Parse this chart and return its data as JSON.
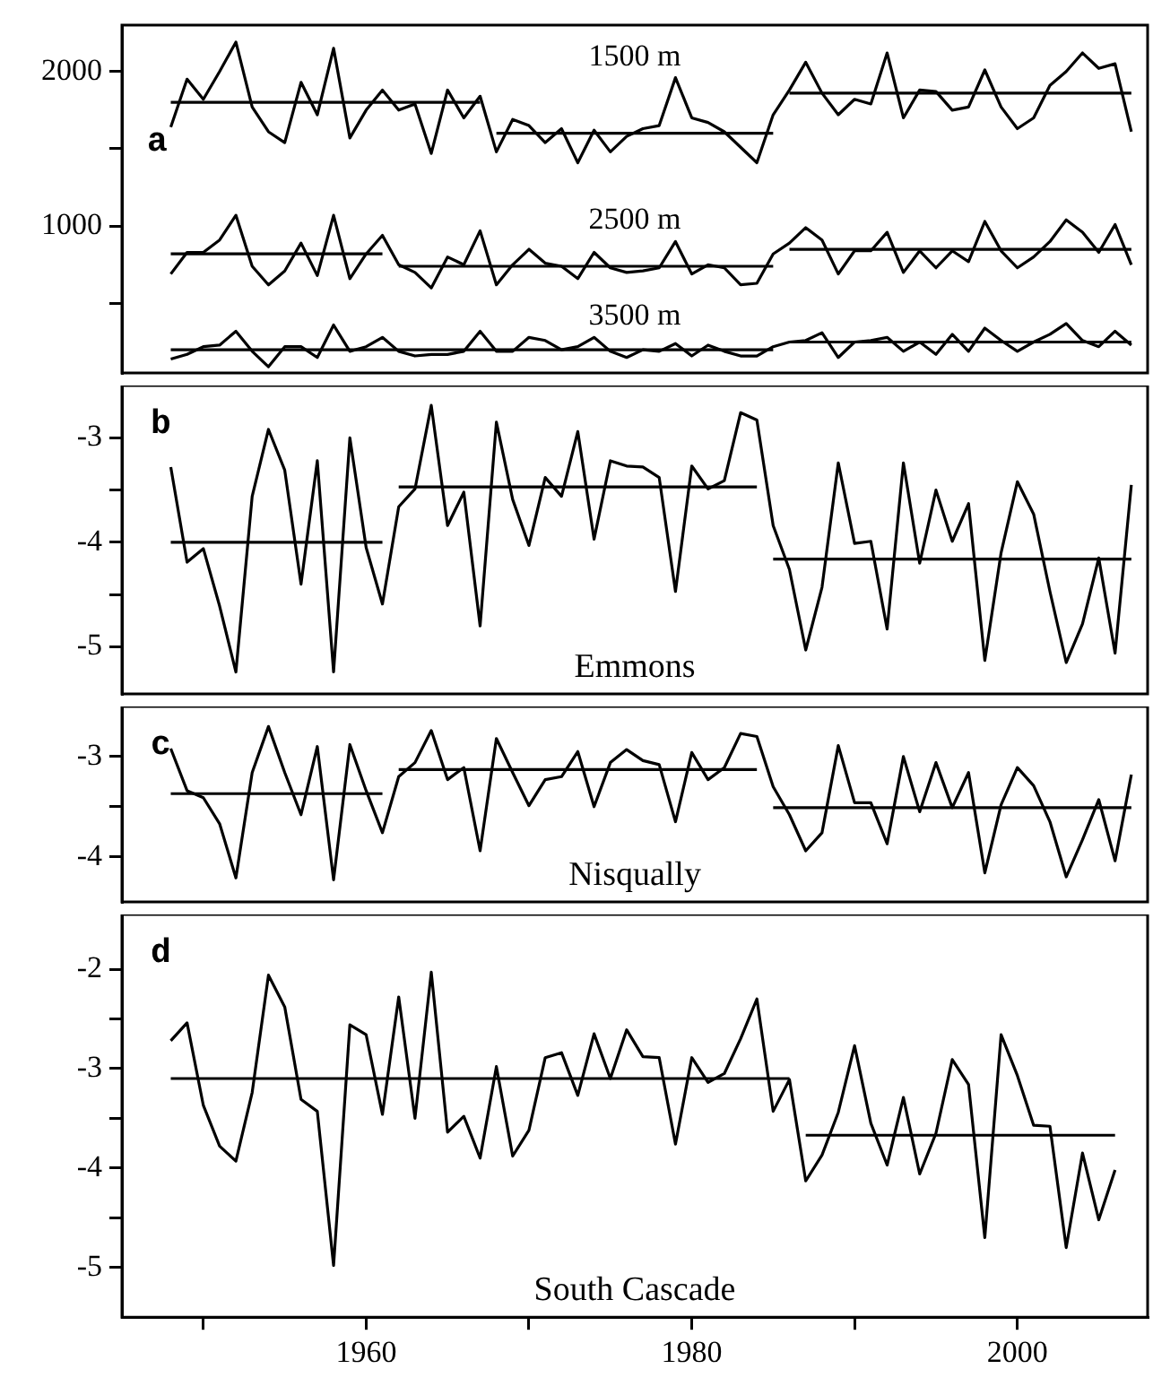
{
  "chart_data": [
    {
      "type": "line",
      "annotations": [
        "a"
      ],
      "x": [
        1948,
        1949,
        1950,
        1951,
        1952,
        1953,
        1954,
        1955,
        1956,
        1957,
        1958,
        1959,
        1960,
        1961,
        1962,
        1963,
        1964,
        1965,
        1966,
        1967,
        1968,
        1969,
        1970,
        1971,
        1972,
        1973,
        1974,
        1975,
        1976,
        1977,
        1978,
        1979,
        1980,
        1981,
        1982,
        1983,
        1984,
        1985,
        1986,
        1987,
        1988,
        1989,
        1990,
        1991,
        1992,
        1993,
        1994,
        1995,
        1996,
        1997,
        1998,
        1999,
        2000,
        2001,
        2002,
        2003,
        2004,
        2005,
        2006,
        2007
      ],
      "xlim": [
        1945,
        2008
      ],
      "ylim": [
        50,
        2300
      ],
      "yticks": [
        {
          "value": 500,
          "label": null
        },
        1000,
        {
          "value": 1500,
          "label": null
        },
        2000
      ],
      "tick_labels": "y",
      "series": [
        {
          "name": "1500 m",
          "color": "#000000",
          "values": [
            1640,
            1950,
            1820,
            2000,
            2190,
            1770,
            1610,
            1540,
            1930,
            1720,
            2150,
            1570,
            1750,
            1880,
            1750,
            1790,
            1470,
            1880,
            1700,
            1840,
            1480,
            1690,
            1650,
            1540,
            1630,
            1410,
            1620,
            1480,
            1580,
            1630,
            1650,
            1960,
            1700,
            1670,
            1610,
            1510,
            1410,
            1720,
            1880,
            2060,
            1860,
            1720,
            1820,
            1790,
            2120,
            1700,
            1880,
            1870,
            1750,
            1770,
            2010,
            1770,
            1630,
            1700,
            1910,
            2000,
            2120,
            2020,
            2050,
            1610
          ]
        },
        {
          "name": "2500 m",
          "color": "#000000",
          "values": [
            690,
            830,
            830,
            910,
            1070,
            740,
            620,
            710,
            890,
            680,
            1070,
            660,
            820,
            940,
            750,
            700,
            600,
            800,
            750,
            970,
            620,
            750,
            850,
            760,
            740,
            660,
            830,
            730,
            700,
            710,
            730,
            900,
            690,
            750,
            730,
            620,
            630,
            820,
            890,
            990,
            910,
            690,
            840,
            840,
            960,
            700,
            840,
            730,
            840,
            770,
            1030,
            840,
            730,
            800,
            900,
            1040,
            960,
            830,
            1010,
            750
          ]
        },
        {
          "name": "3500 m",
          "color": "#000000",
          "values": [
            140,
            170,
            220,
            230,
            320,
            190,
            90,
            220,
            220,
            150,
            360,
            190,
            220,
            280,
            190,
            160,
            170,
            170,
            190,
            320,
            190,
            190,
            280,
            260,
            200,
            220,
            280,
            190,
            150,
            200,
            190,
            240,
            160,
            230,
            190,
            160,
            160,
            220,
            250,
            260,
            310,
            150,
            250,
            260,
            280,
            190,
            250,
            170,
            300,
            190,
            340,
            260,
            190,
            250,
            300,
            370,
            260,
            220,
            320,
            230
          ]
        },
        {
          "type": "line",
          "color": "#000000",
          "x": [
            1948,
            1967
          ],
          "values": [
            1800,
            1800
          ]
        },
        {
          "type": "line",
          "color": "#000000",
          "x": [
            1968,
            1985
          ],
          "values": [
            1600,
            1600
          ]
        },
        {
          "type": "line",
          "color": "#000000",
          "x": [
            1986,
            2007
          ],
          "values": [
            1860,
            1860
          ]
        },
        {
          "type": "line",
          "color": "#000000",
          "x": [
            1948,
            1961
          ],
          "values": [
            820,
            820
          ]
        },
        {
          "type": "line",
          "color": "#000000",
          "x": [
            1962,
            1985
          ],
          "values": [
            740,
            740
          ]
        },
        {
          "type": "line",
          "color": "#000000",
          "x": [
            1986,
            2007
          ],
          "values": [
            850,
            850
          ]
        },
        {
          "type": "line",
          "color": "#000000",
          "x": [
            1948,
            1985
          ],
          "values": [
            200,
            200
          ]
        },
        {
          "type": "line",
          "color": "#000000",
          "x": [
            1986,
            2007
          ],
          "values": [
            250,
            250
          ]
        }
      ]
    },
    {
      "type": "line",
      "annotations": [
        "b",
        "Emmons"
      ],
      "x": [
        1948,
        1949,
        1950,
        1951,
        1952,
        1953,
        1954,
        1955,
        1956,
        1957,
        1958,
        1959,
        1960,
        1961,
        1962,
        1963,
        1964,
        1965,
        1966,
        1967,
        1968,
        1969,
        1970,
        1971,
        1972,
        1973,
        1974,
        1975,
        1976,
        1977,
        1978,
        1979,
        1980,
        1981,
        1982,
        1983,
        1984,
        1985,
        1986,
        1987,
        1988,
        1989,
        1990,
        1991,
        1992,
        1993,
        1994,
        1995,
        1996,
        1997,
        1998,
        1999,
        2000,
        2001,
        2002,
        2003,
        2004,
        2005,
        2006,
        2007
      ],
      "xlim": [
        1945,
        2008
      ],
      "ylim": [
        -5.45,
        -2.5
      ],
      "yticks": [
        -5,
        {
          "value": -4.5,
          "label": null
        },
        -4,
        {
          "value": -3.5,
          "label": null
        },
        -3
      ],
      "tick_labels": "y",
      "series": [
        {
          "color": "#000000",
          "values": [
            -3.28,
            -4.19,
            -4.06,
            -4.61,
            -5.24,
            -3.56,
            -2.92,
            -3.31,
            -4.4,
            -3.22,
            -5.24,
            -3.0,
            -4.05,
            -4.59,
            -3.66,
            -3.49,
            -2.69,
            -3.84,
            -3.52,
            -4.8,
            -2.85,
            -3.59,
            -4.03,
            -3.38,
            -3.56,
            -2.94,
            -3.97,
            -3.22,
            -3.27,
            -3.28,
            -3.38,
            -4.47,
            -3.27,
            -3.49,
            -3.41,
            -2.76,
            -2.83,
            -3.84,
            -4.26,
            -5.03,
            -4.43,
            -3.24,
            -4.01,
            -3.99,
            -4.83,
            -3.24,
            -4.2,
            -3.5,
            -3.99,
            -3.63,
            -5.13,
            -4.1,
            -3.42,
            -3.73,
            -4.47,
            -5.15,
            -4.78,
            -4.15,
            -5.06,
            -3.45
          ]
        },
        {
          "type": "line",
          "color": "#000000",
          "x": [
            1948,
            1961
          ],
          "values": [
            -4.0,
            -4.0
          ]
        },
        {
          "type": "line",
          "color": "#000000",
          "x": [
            1962,
            1984
          ],
          "values": [
            -3.47,
            -3.47
          ]
        },
        {
          "type": "line",
          "color": "#000000",
          "x": [
            1985,
            2007
          ],
          "values": [
            -4.16,
            -4.16
          ]
        }
      ]
    },
    {
      "type": "line",
      "annotations": [
        "c",
        "Nisqually"
      ],
      "x": [
        1948,
        1949,
        1950,
        1951,
        1952,
        1953,
        1954,
        1955,
        1956,
        1957,
        1958,
        1959,
        1960,
        1961,
        1962,
        1963,
        1964,
        1965,
        1966,
        1967,
        1968,
        1969,
        1970,
        1971,
        1972,
        1973,
        1974,
        1975,
        1976,
        1977,
        1978,
        1979,
        1980,
        1981,
        1982,
        1983,
        1984,
        1985,
        1986,
        1987,
        1988,
        1989,
        1990,
        1991,
        1992,
        1993,
        1994,
        1995,
        1996,
        1997,
        1998,
        1999,
        2000,
        2001,
        2002,
        2003,
        2004,
        2005,
        2006,
        2007
      ],
      "xlim": [
        1945,
        2008
      ],
      "ylim": [
        -4.45,
        -2.5
      ],
      "yticks": [
        -4,
        {
          "value": -3.5,
          "label": null
        },
        -3
      ],
      "tick_labels": "y",
      "series": [
        {
          "color": "#000000",
          "values": [
            -2.92,
            -3.34,
            -3.41,
            -3.67,
            -4.21,
            -3.16,
            -2.7,
            -3.16,
            -3.58,
            -2.9,
            -4.23,
            -2.88,
            -3.34,
            -3.76,
            -3.2,
            -3.06,
            -2.74,
            -3.23,
            -3.11,
            -3.94,
            -2.82,
            -3.16,
            -3.49,
            -3.23,
            -3.2,
            -2.95,
            -3.5,
            -3.06,
            -2.93,
            -3.04,
            -3.08,
            -3.65,
            -2.96,
            -3.23,
            -3.11,
            -2.77,
            -2.8,
            -3.3,
            -3.58,
            -3.94,
            -3.76,
            -2.89,
            -3.46,
            -3.46,
            -3.87,
            -3.0,
            -3.55,
            -3.06,
            -3.51,
            -3.16,
            -4.16,
            -3.48,
            -3.11,
            -3.29,
            -3.65,
            -4.2,
            -3.83,
            -3.43,
            -4.04,
            -3.18
          ]
        },
        {
          "type": "line",
          "color": "#000000",
          "x": [
            1948,
            1961
          ],
          "values": [
            -3.37,
            -3.37
          ]
        },
        {
          "type": "line",
          "color": "#000000",
          "x": [
            1962,
            1984
          ],
          "values": [
            -3.13,
            -3.13
          ]
        },
        {
          "type": "line",
          "color": "#000000",
          "x": [
            1985,
            2007
          ],
          "values": [
            -3.51,
            -3.51
          ]
        }
      ]
    },
    {
      "type": "line",
      "annotations": [
        "d",
        "South Cascade"
      ],
      "x": [
        1948,
        1949,
        1950,
        1951,
        1952,
        1953,
        1954,
        1955,
        1956,
        1957,
        1958,
        1959,
        1960,
        1961,
        1962,
        1963,
        1964,
        1965,
        1966,
        1967,
        1968,
        1969,
        1970,
        1971,
        1972,
        1973,
        1974,
        1975,
        1976,
        1977,
        1978,
        1979,
        1980,
        1981,
        1982,
        1983,
        1984,
        1985,
        1986,
        1987,
        1988,
        1989,
        1990,
        1991,
        1992,
        1993,
        1994,
        1995,
        1996,
        1997,
        1998,
        1999,
        2000,
        2001,
        2002,
        2003,
        2004,
        2005,
        2006
      ],
      "xlim": [
        1945,
        2008
      ],
      "xticks": [
        {
          "value": 1950,
          "label": null
        },
        1960,
        {
          "value": 1970,
          "label": null
        },
        1980,
        {
          "value": 1990,
          "label": null
        },
        2000
      ],
      "ylim": [
        -5.5,
        -1.45
      ],
      "yticks": [
        -5,
        {
          "value": -4.5,
          "label": null
        },
        -4,
        {
          "value": -3.5,
          "label": null
        },
        -3,
        {
          "value": -2.5,
          "label": null
        },
        -2
      ],
      "series": [
        {
          "color": "#000000",
          "values": [
            -2.72,
            -2.54,
            -3.37,
            -3.78,
            -3.93,
            -3.24,
            -2.06,
            -2.38,
            -3.31,
            -3.43,
            -4.98,
            -2.56,
            -2.66,
            -3.46,
            -2.28,
            -3.5,
            -2.03,
            -3.64,
            -3.48,
            -3.9,
            -2.98,
            -3.88,
            -3.62,
            -2.89,
            -2.84,
            -3.27,
            -2.65,
            -3.1,
            -2.61,
            -2.88,
            -2.89,
            -3.76,
            -2.89,
            -3.14,
            -3.05,
            -2.7,
            -2.3,
            -3.43,
            -3.11,
            -4.13,
            -3.87,
            -3.44,
            -2.77,
            -3.55,
            -3.97,
            -3.29,
            -4.06,
            -3.65,
            -2.91,
            -3.16,
            -4.7,
            -2.66,
            -3.07,
            -3.57,
            -3.58,
            -4.8,
            -3.85,
            -4.52,
            -4.02
          ]
        },
        {
          "type": "line",
          "color": "#000000",
          "x": [
            1948,
            1986
          ],
          "values": [
            -3.1,
            -3.1
          ]
        },
        {
          "type": "line",
          "color": "#000000",
          "x": [
            1987,
            2006
          ],
          "values": [
            -3.67,
            -3.67
          ]
        }
      ]
    }
  ]
}
